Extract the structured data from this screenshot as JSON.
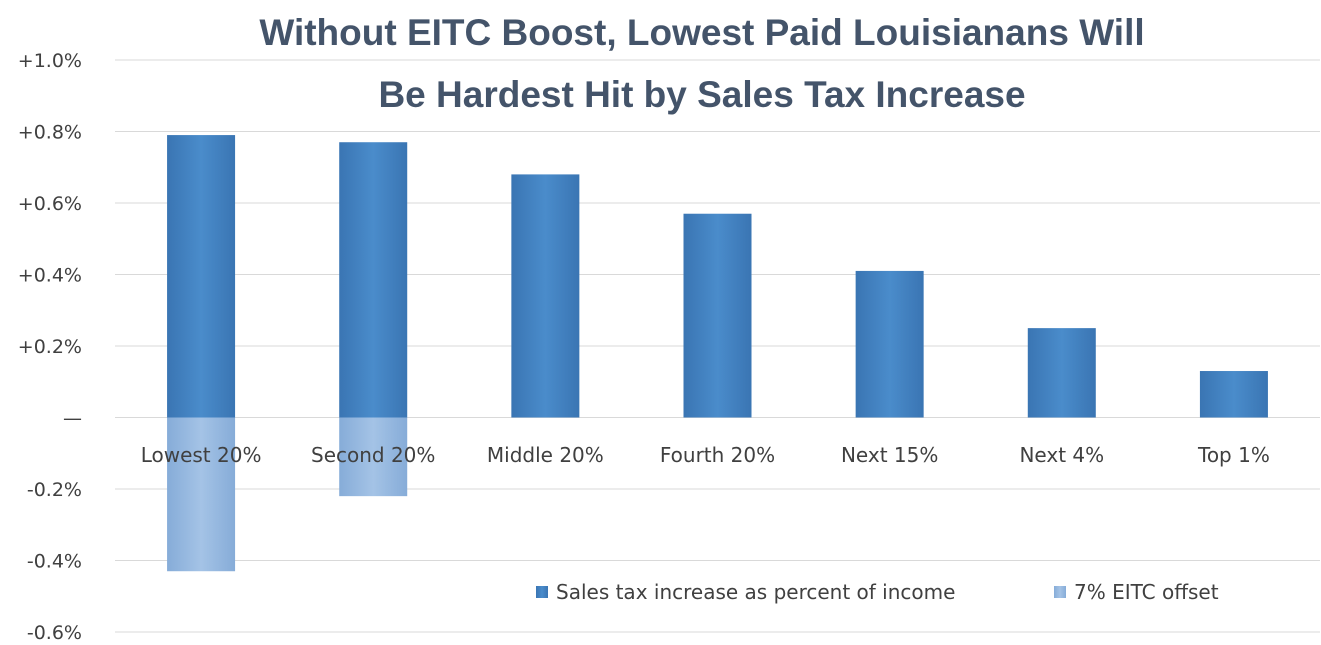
{
  "chart_data": {
    "type": "bar",
    "title": "Without EITC Boost, Lowest Paid Louisianans Will Be Hardest Hit by Sales Tax Increase",
    "title_lines": [
      "Without EITC Boost, Lowest Paid Louisianans Will",
      "Be Hardest Hit by Sales Tax Increase"
    ],
    "categories": [
      "Lowest 20%",
      "Second 20%",
      "Middle 20%",
      "Fourth 20%",
      "Next 15%",
      "Next 4%",
      "Top 1%"
    ],
    "series": [
      {
        "name": "Sales tax increase as percent of income",
        "color": "#3f7fbf",
        "values": [
          0.79,
          0.77,
          0.68,
          0.57,
          0.41,
          0.25,
          0.13
        ]
      },
      {
        "name": "7% EITC offset",
        "color": "#8fb4dd",
        "values": [
          -0.43,
          -0.22,
          null,
          null,
          null,
          null,
          null
        ]
      }
    ],
    "ylim": [
      -0.6,
      1.0
    ],
    "yticks": [
      1.0,
      0.8,
      0.6,
      0.4,
      0.2,
      0,
      -0.2,
      -0.4,
      -0.6
    ],
    "ytick_labels": [
      "+1.0%",
      "+0.8%",
      "+0.6%",
      "+0.4%",
      "+0.2%",
      "—",
      "-0.2%",
      "-0.4%",
      "-0.6%"
    ],
    "grid": true,
    "legend_position": "bottom-right",
    "xlabel": "",
    "ylabel": ""
  }
}
